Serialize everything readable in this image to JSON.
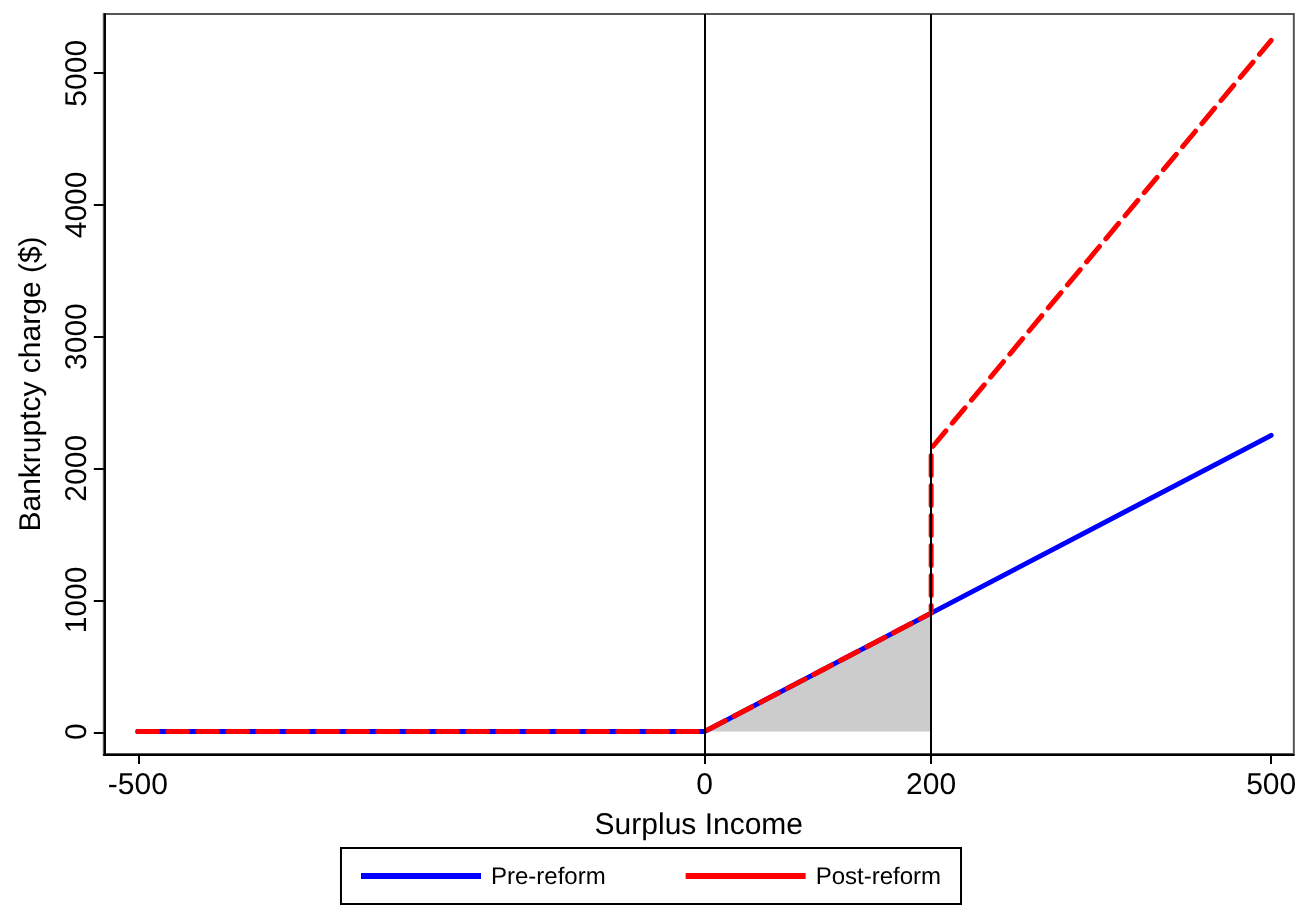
{
  "chart_data": {
    "type": "line",
    "xlabel": "Surplus Income",
    "ylabel": "Bankruptcy charge ($)",
    "xlim": [
      -530,
      520
    ],
    "xticks": [
      -500,
      0,
      200,
      500
    ],
    "ylim": [
      -170,
      5450
    ],
    "yticks": [
      0,
      1000,
      2000,
      3000,
      4000,
      5000
    ],
    "grid": false,
    "legend": "bottom",
    "marker": "none",
    "ref_lines": [
      {
        "axis": "x",
        "value": 0,
        "color": "#000000"
      },
      {
        "axis": "x",
        "value": 200,
        "color": "#000000"
      }
    ],
    "series": [
      {
        "type": "area",
        "color": "#cccccc",
        "x": [
          0,
          200
        ],
        "values": [
          0,
          900
        ]
      },
      {
        "name": "Pre-reform",
        "color": "#0000ff",
        "line_style": "solid",
        "x": [
          -500,
          0,
          200,
          500
        ],
        "values": [
          0,
          0,
          900,
          2250
        ]
      },
      {
        "name": "Post-reform",
        "color": "#ff0000",
        "line_style": "dashed",
        "x": [
          -500,
          0,
          200,
          200,
          500
        ],
        "values": [
          0,
          0,
          900,
          2150,
          5250
        ]
      }
    ]
  }
}
